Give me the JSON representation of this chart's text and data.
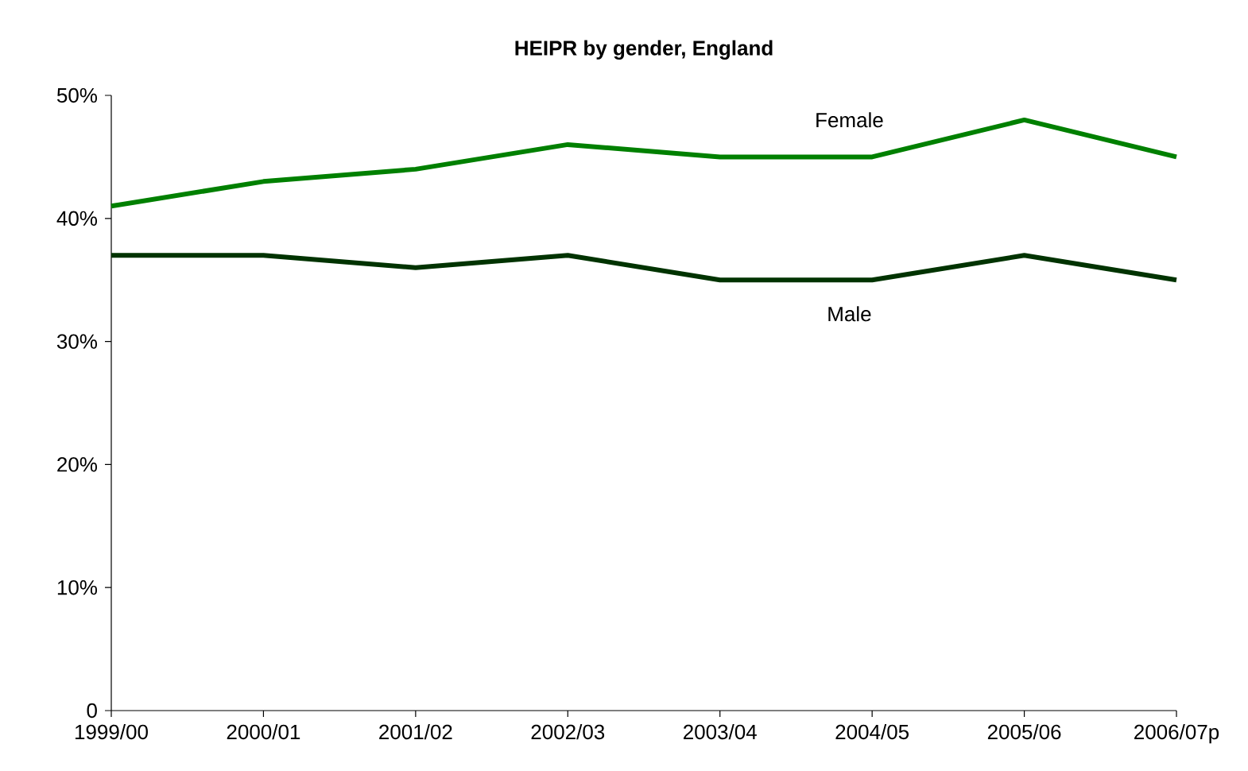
{
  "chart_data": {
    "type": "line",
    "title": "HEIPR by gender, England",
    "categories": [
      "1999/00",
      "2000/01",
      "2001/02",
      "2002/03",
      "2003/04",
      "2004/05",
      "2005/06",
      "2006/07p"
    ],
    "series": [
      {
        "name": "Female",
        "color": "#008000",
        "values": [
          41,
          43,
          44,
          46,
          45,
          45,
          48,
          45
        ]
      },
      {
        "name": "Male",
        "color": "#003300",
        "values": [
          37,
          37,
          36,
          37,
          35,
          35,
          37,
          35
        ]
      }
    ],
    "ylim": [
      0,
      50
    ],
    "yticks": [
      0,
      {
        "value": 10,
        "label": "10%"
      },
      {
        "value": 20,
        "label": "20%"
      },
      {
        "value": 30,
        "label": "30%"
      },
      {
        "value": 40,
        "label": "40%"
      },
      {
        "value": 50,
        "label": "50%"
      }
    ],
    "grid": false,
    "legend": false,
    "marker": "none",
    "line_style": "solid"
  }
}
